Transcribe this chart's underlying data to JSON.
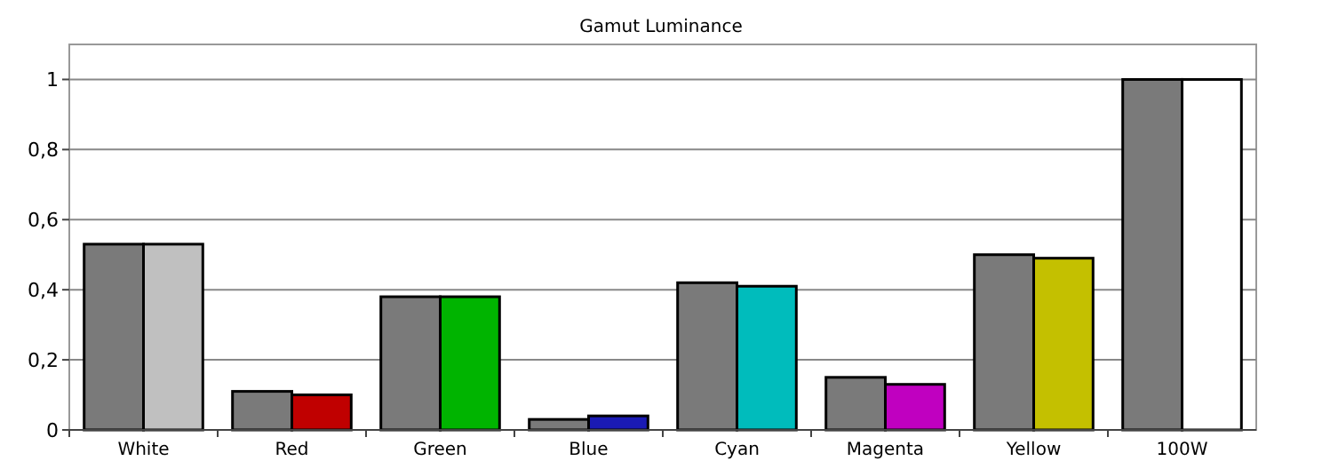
{
  "chart_data": {
    "type": "bar",
    "title": "Gamut Luminance",
    "categories": [
      "White",
      "Red",
      "Green",
      "Blue",
      "Cyan",
      "Magenta",
      "Yellow",
      "100W"
    ],
    "series": [
      {
        "color": "#7a7a7a",
        "values": [
          0.53,
          0.11,
          0.38,
          0.03,
          0.42,
          0.15,
          0.5,
          1.0
        ]
      },
      {
        "colors": [
          "#c0c0c0",
          "#c00000",
          "#00b400",
          "#1a1ab4",
          "#00bcbc",
          "#c000c0",
          "#c4c000",
          "#ffffff"
        ],
        "values": [
          0.53,
          0.1,
          0.38,
          0.04,
          0.41,
          0.13,
          0.49,
          1.0
        ]
      }
    ],
    "ylim": [
      0,
      1.1
    ],
    "yticks": [
      {
        "value": 0,
        "label": "0"
      },
      {
        "value": 0.2,
        "label": "0,2"
      },
      {
        "value": 0.4,
        "label": "0,4"
      },
      {
        "value": 0.6,
        "label": "0,6"
      },
      {
        "value": 0.8,
        "label": "0,8"
      },
      {
        "value": 1,
        "label": "1"
      }
    ],
    "grid": "y"
  }
}
